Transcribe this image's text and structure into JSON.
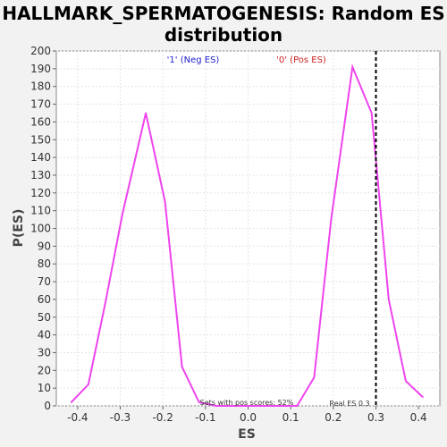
{
  "chart_data": {
    "type": "line",
    "title_line1": "HALLMARK_SPERMATOGENESIS: Random ES",
    "title_line2": "distribution",
    "xlabel": "ES",
    "ylabel": "P(ES)",
    "xlim": [
      -0.45,
      0.45
    ],
    "ylim": [
      0,
      200
    ],
    "x_ticks": [
      "-0.4",
      "-0.3",
      "-0.2",
      "-0.1",
      "0.0",
      "0.1",
      "0.2",
      "0.3",
      "0.4"
    ],
    "y_ticks": [
      "0",
      "10",
      "20",
      "30",
      "40",
      "50",
      "60",
      "70",
      "80",
      "90",
      "100",
      "110",
      "120",
      "130",
      "140",
      "150",
      "160",
      "170",
      "180",
      "190",
      "200"
    ],
    "grid": true,
    "series": [
      {
        "color": "#ee44ee",
        "x": [
          -0.415,
          -0.375,
          -0.335,
          -0.295,
          -0.24,
          -0.195,
          -0.155,
          -0.115,
          -0.075,
          0.115,
          0.155,
          0.195,
          0.245,
          0.29,
          0.33,
          0.37,
          0.41
        ],
        "y": [
          2,
          12,
          58,
          108,
          165,
          115,
          22,
          2,
          0,
          0,
          16,
          105,
          191,
          165,
          60,
          14,
          5
        ]
      }
    ],
    "marker_line": {
      "x": 0.3,
      "color": "#000000"
    },
    "annotations": {
      "neg_label": "'1' (Neg ES)",
      "neg_color": "#2222cc",
      "pos_label": "'0' (Pos ES)",
      "pos_color": "#cc2222",
      "pos_scores": "Sets with pos scores: 52%",
      "real_es": "Real ES 0.3"
    }
  }
}
